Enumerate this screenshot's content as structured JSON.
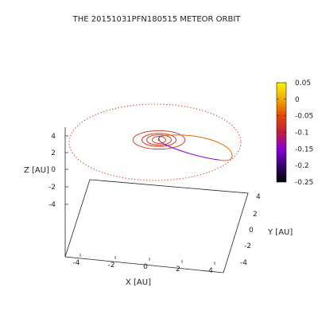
{
  "chart_data": {
    "type": "scatter",
    "projection": "3d",
    "title": "THE 20151031PFN180515 METEOR ORBIT",
    "xlabel": "X [AU]",
    "ylabel": "Y [AU]",
    "zlabel": "Z [AU]",
    "xlim": [
      -5,
      5
    ],
    "ylim": [
      -5,
      5
    ],
    "zlim": [
      -5,
      5
    ],
    "x_ticks": [
      "-4",
      "-2",
      "0",
      "2",
      "4"
    ],
    "y_ticks": [
      "4",
      "2",
      "0",
      "-2",
      "-4"
    ],
    "z_ticks": [
      "4",
      "2",
      "0",
      "-2",
      "-4"
    ],
    "colorbar": {
      "ticks": [
        "0.05",
        "0",
        "-0.05",
        "-0.1",
        "-0.15",
        "-0.2",
        "-0.25"
      ],
      "range": [
        -0.25,
        0.05
      ],
      "palette": [
        "#000000",
        "#3a0070",
        "#8a00d8",
        "#c41c3a",
        "#e04a00",
        "#f2a800",
        "#fff000"
      ]
    },
    "series": [
      {
        "kind": "planet-orbit",
        "radius_au": 0.39,
        "color": "#d0402a"
      },
      {
        "kind": "planet-orbit",
        "radius_au": 0.72,
        "color": "#d0402a"
      },
      {
        "kind": "planet-orbit",
        "radius_au": 1.0,
        "color": "#d0402a"
      },
      {
        "kind": "planet-orbit",
        "radius_au": 1.52,
        "color": "#d0402a"
      },
      {
        "kind": "planet-orbit",
        "radius_au": 5.2,
        "color": "#e0322a",
        "dotted": true
      },
      {
        "kind": "meteor-orbit",
        "color_range": [
          "#e06a00",
          "#8a00d8"
        ],
        "aphelion_au": 3.9,
        "perihelion_au": 0.5
      }
    ]
  }
}
